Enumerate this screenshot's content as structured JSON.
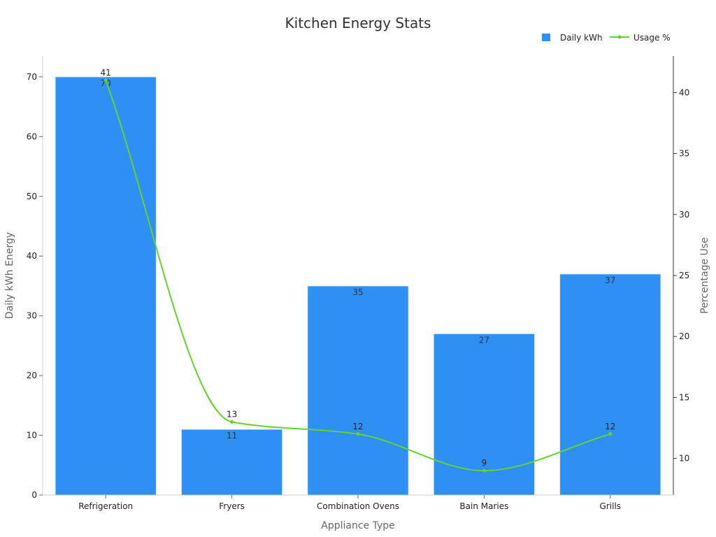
{
  "chart_data": {
    "type": "bar",
    "title": "Kitchen Energy Stats",
    "xlabel": "Appliance Type",
    "categories": [
      "Refrigeration",
      "Fryers",
      "Combination Ovens",
      "Bain Maries",
      "Grills"
    ],
    "series": [
      {
        "name": "Daily kWh",
        "type": "bar",
        "axis": "left",
        "color": "#2e90f5",
        "values": [
          70,
          11,
          35,
          27,
          37
        ]
      },
      {
        "name": "Usage %",
        "type": "line",
        "axis": "right",
        "color": "#66d32b",
        "smooth": true,
        "values": [
          41,
          13,
          12,
          9,
          12
        ]
      }
    ],
    "y_left": {
      "label": "Daily kWh Energy",
      "range": [
        0,
        73.5
      ],
      "ticks": [
        0,
        10,
        20,
        30,
        40,
        50,
        60,
        70
      ]
    },
    "y_right": {
      "label": "Percentage Use",
      "range": [
        7,
        43
      ],
      "ticks": [
        10,
        15,
        20,
        25,
        30,
        35,
        40
      ]
    },
    "legend": {
      "position": "top-right"
    },
    "grid": false
  }
}
